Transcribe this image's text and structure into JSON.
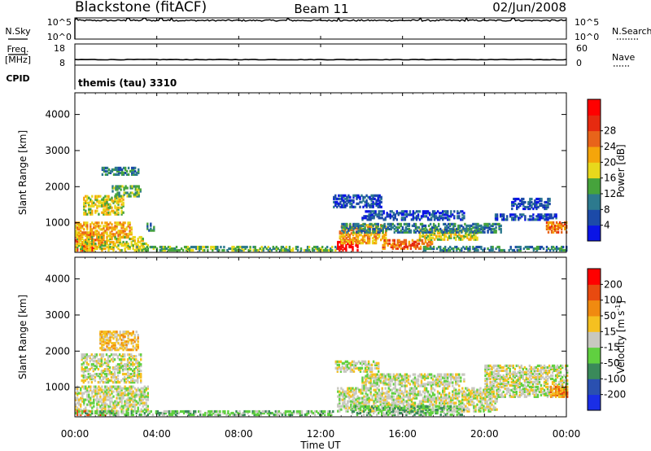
{
  "header": {
    "station": "Blackstone (fitACF)",
    "beam": "Beam 11",
    "date": "02/Jun/2008"
  },
  "sky_panel": {
    "left_label": "N.Sky",
    "right_label": "N.Search",
    "left_ticks": [
      "10^5",
      "10^0"
    ],
    "right_ticks": [
      "10^5",
      "10^0"
    ],
    "right_legend_line": "dotted"
  },
  "freq_panel": {
    "left_label_1": "Freq.",
    "left_label_2": "[MHz]",
    "right_label": "Nave",
    "left_ticks": [
      "18",
      "8"
    ],
    "right_ticks": [
      "60",
      "0"
    ],
    "right_legend_line": "dotted"
  },
  "cpid_panel": {
    "label": "CPID",
    "text": "themis (tau) 3310"
  },
  "time_axis": {
    "ticks": [
      "00:00",
      "04:00",
      "08:00",
      "12:00",
      "16:00",
      "20:00",
      "00:00"
    ],
    "label": "Time UT",
    "range_hours": [
      0,
      24
    ]
  },
  "colors": {
    "power": [
      "#0a14e6",
      "#1c4aa8",
      "#2d7a8e",
      "#46a33c",
      "#e8d81c",
      "#f5a50a",
      "#e8641a",
      "#e62a10",
      "#ff0000"
    ],
    "velocity": [
      "#1a2ee6",
      "#2a50b0",
      "#3a8a5a",
      "#60d040",
      "#c8c8c0",
      "#f5c020",
      "#f08a10",
      "#e84a10",
      "#ff0000"
    ]
  },
  "chart_data": [
    {
      "type": "line",
      "name": "N.Sky / N.Search",
      "x_unit": "hours UT",
      "xlim": [
        0,
        24
      ],
      "ylabel": "N.Sky",
      "ylim_log10": [
        0,
        5
      ],
      "baseline_log10": 4.4,
      "spikes_x": [
        0.1,
        2.6,
        3.4,
        4.2,
        4.7,
        10.4,
        12.9,
        16.9,
        19.1,
        21.4
      ]
    },
    {
      "type": "line",
      "name": "Freq. / Nave",
      "x_unit": "hours UT",
      "xlim": [
        0,
        24
      ],
      "ylabel": "Freq. [MHz]",
      "ylim": [
        8,
        18
      ],
      "frequency_mhz": 10.6
    },
    {
      "type": "heatmap",
      "quantity": "Power",
      "xlabel": "Time UT",
      "ylabel": "Slant Range [km]",
      "colorbar_label": "Power [dB]",
      "xlim": [
        0,
        24
      ],
      "ylim": [
        180,
        4600
      ],
      "yticks": [
        1000,
        2000,
        3000,
        4000
      ],
      "colorbar_ticks": [
        "4",
        "8",
        "12",
        "16",
        "20",
        "24",
        "28"
      ],
      "colorbar_range": [
        0,
        32
      ],
      "scatter_regions": [
        {
          "t0": 0.0,
          "t1": 1.0,
          "r0": 200,
          "r1": 350,
          "level": 8
        },
        {
          "t0": 0.0,
          "t1": 1.5,
          "r0": 350,
          "r1": 700,
          "level": 6
        },
        {
          "t0": 0.0,
          "t1": 2.8,
          "r0": 600,
          "r1": 1000,
          "level": 5
        },
        {
          "t0": 0.4,
          "t1": 2.4,
          "r0": 1200,
          "r1": 1700,
          "level": 4
        },
        {
          "t0": 1.8,
          "t1": 3.2,
          "r0": 1700,
          "r1": 2000,
          "level": 3
        },
        {
          "t0": 1.3,
          "t1": 3.2,
          "r0": 2300,
          "r1": 2500,
          "level": 2
        },
        {
          "t0": 0.0,
          "t1": 3.6,
          "r0": 200,
          "r1": 600,
          "level": 4
        },
        {
          "t0": 3.5,
          "t1": 3.9,
          "r0": 750,
          "r1": 950,
          "level": 2
        },
        {
          "t0": 3.0,
          "t1": 12.8,
          "r0": 200,
          "r1": 320,
          "level": 3
        },
        {
          "t0": 12.8,
          "t1": 13.8,
          "r0": 200,
          "r1": 500,
          "level": 8
        },
        {
          "t0": 12.9,
          "t1": 15.2,
          "r0": 400,
          "r1": 900,
          "level": 5
        },
        {
          "t0": 15.0,
          "t1": 17.4,
          "r0": 250,
          "r1": 500,
          "level": 6
        },
        {
          "t0": 16.8,
          "t1": 19.6,
          "r0": 500,
          "r1": 800,
          "level": 4
        },
        {
          "t0": 13.0,
          "t1": 20.8,
          "r0": 700,
          "r1": 950,
          "level": 2
        },
        {
          "t0": 14.0,
          "t1": 19.0,
          "r0": 1050,
          "r1": 1300,
          "level": 1
        },
        {
          "t0": 12.6,
          "t1": 15.0,
          "r0": 1400,
          "r1": 1750,
          "level": 1
        },
        {
          "t0": 20.5,
          "t1": 23.5,
          "r0": 1050,
          "r1": 1200,
          "level": 1
        },
        {
          "t0": 21.3,
          "t1": 23.2,
          "r0": 1350,
          "r1": 1650,
          "level": 1
        },
        {
          "t0": 23.0,
          "t1": 24.0,
          "r0": 700,
          "r1": 1000,
          "level": 6
        },
        {
          "t0": 17.0,
          "t1": 24.0,
          "r0": 200,
          "r1": 320,
          "level": 2
        }
      ]
    },
    {
      "type": "heatmap",
      "quantity": "Velocity",
      "xlabel": "Time UT",
      "ylabel": "Slant Range [km]",
      "colorbar_label": "Velocity [m s^-1]",
      "xlim": [
        0,
        24
      ],
      "ylim": [
        180,
        4600
      ],
      "yticks": [
        1000,
        2000,
        3000,
        4000
      ],
      "colorbar_ticks": [
        "-200",
        "-100",
        "-50",
        "-15",
        "15",
        "50",
        "100",
        "200"
      ],
      "scatter_regions": [
        {
          "t0": 0.0,
          "t1": 3.6,
          "r0": 300,
          "r1": 1000,
          "level": 4
        },
        {
          "t0": 0.3,
          "t1": 3.2,
          "r0": 1100,
          "r1": 1900,
          "level": 4
        },
        {
          "t0": 0.0,
          "t1": 2.0,
          "r0": 200,
          "r1": 300,
          "level": 7
        },
        {
          "t0": 1.2,
          "t1": 3.1,
          "r0": 2000,
          "r1": 2500,
          "level": 5
        },
        {
          "t0": 0.0,
          "t1": 12.6,
          "r0": 200,
          "r1": 330,
          "level": 3
        },
        {
          "t0": 12.8,
          "t1": 20.6,
          "r0": 300,
          "r1": 950,
          "level": 4
        },
        {
          "t0": 13.5,
          "t1": 19.0,
          "r0": 200,
          "r1": 450,
          "level": 3
        },
        {
          "t0": 14.0,
          "t1": 19.0,
          "r0": 1000,
          "r1": 1350,
          "level": 4
        },
        {
          "t0": 12.7,
          "t1": 14.8,
          "r0": 1400,
          "r1": 1700,
          "level": 4
        },
        {
          "t0": 20.0,
          "t1": 24.0,
          "r0": 700,
          "r1": 1600,
          "level": 4
        },
        {
          "t0": 23.2,
          "t1": 24.0,
          "r0": 700,
          "r1": 1000,
          "level": 6
        }
      ]
    }
  ]
}
